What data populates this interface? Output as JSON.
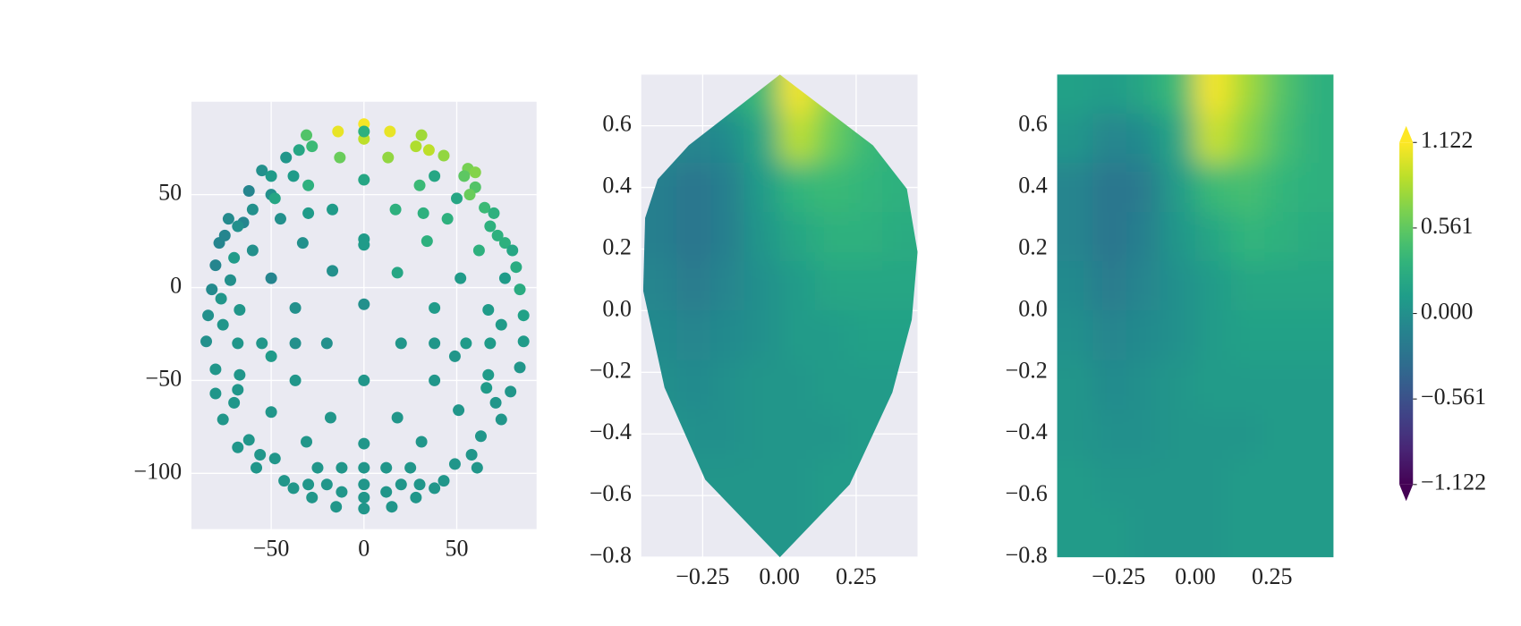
{
  "chart_data": [
    {
      "type": "scatter",
      "colormap": "viridis",
      "clim": [
        -1.122,
        1.122
      ],
      "grid": true,
      "xlim": [
        -93,
        93
      ],
      "ylim": [
        -130,
        100
      ],
      "xticks": [
        {
          "value": -50,
          "label": "−50"
        },
        0,
        50
      ],
      "yticks": [
        {
          "value": -100,
          "label": "−100"
        },
        {
          "value": -50,
          "label": "−50"
        },
        0,
        50
      ],
      "x": [
        0,
        -14,
        14,
        -31,
        31,
        0,
        0,
        -35,
        -28,
        35,
        43,
        -13,
        13,
        28,
        -42,
        56,
        60,
        -55,
        54,
        -50,
        38,
        -38,
        0,
        -30,
        30,
        60,
        -62,
        57,
        -50,
        -48,
        50,
        -60,
        65,
        -30,
        -17,
        17,
        32,
        70,
        -73,
        -45,
        45,
        -65,
        68,
        -68,
        0,
        0,
        -33,
        34,
        -78,
        76,
        -75,
        72,
        -60,
        62,
        80,
        -70,
        -80,
        82,
        -17,
        18,
        -50,
        52,
        -72,
        76,
        -82,
        84,
        -77,
        0,
        -37,
        38,
        -67,
        67,
        -84,
        86,
        -76,
        74,
        -85,
        86,
        -55,
        -37,
        -20,
        20,
        38,
        55,
        -68,
        68,
        -50,
        49,
        -80,
        84,
        -67,
        67,
        -37,
        0,
        38,
        -80,
        79,
        -68,
        66,
        -70,
        71,
        -50,
        -18,
        18,
        51,
        -76,
        74,
        -62,
        63,
        -68,
        0,
        -31,
        31,
        -56,
        58,
        -48,
        49,
        -58,
        61,
        -12,
        0,
        12,
        -25,
        25,
        -43,
        43,
        -30,
        30,
        -20,
        20,
        0,
        -12,
        12,
        -38,
        38,
        -28,
        28,
        0,
        -15,
        15,
        0
      ],
      "y": [
        88,
        84,
        84,
        82,
        82,
        80,
        84,
        74,
        76,
        74,
        71,
        70,
        70,
        76,
        70,
        64,
        62,
        63,
        60,
        60,
        60,
        60,
        58,
        55,
        55,
        54,
        52,
        50,
        50,
        48,
        48,
        42,
        43,
        40,
        42,
        42,
        40,
        40,
        37,
        37,
        37,
        35,
        33,
        33,
        26,
        23,
        24,
        25,
        24,
        24,
        28,
        28,
        20,
        20,
        20,
        16,
        12,
        11,
        9,
        8,
        5,
        5,
        4,
        5,
        -1,
        -1,
        -6,
        -9,
        -11,
        -11,
        -12,
        -12,
        -15,
        -15,
        -20,
        -20,
        -29,
        -29,
        -30,
        -30,
        -30,
        -30,
        -30,
        -30,
        -30,
        -30,
        -37,
        -37,
        -44,
        -43,
        -47,
        -47,
        -50,
        -50,
        -50,
        -57,
        -56,
        -55,
        -54,
        -62,
        -62,
        -67,
        -70,
        -70,
        -66,
        -71,
        -71,
        -82,
        -80,
        -86,
        -84,
        -83,
        -83,
        -90,
        -90,
        -92,
        -95,
        -97,
        -97,
        -97,
        -97,
        -97,
        -97,
        -97,
        -104,
        -104,
        -106,
        -106,
        -106,
        -106,
        -106,
        -110,
        -110,
        -108,
        -108,
        -113,
        -113,
        -113,
        -118,
        -118,
        -119
      ],
      "values": [
        1.1,
        1.05,
        1.05,
        0.5,
        0.8,
        0.9,
        0.3,
        0.2,
        0.4,
        0.9,
        0.75,
        0.6,
        0.75,
        0.85,
        0.05,
        0.65,
        0.7,
        0.0,
        0.55,
        0.1,
        0.2,
        0.1,
        0.2,
        0.3,
        0.4,
        0.5,
        -0.1,
        0.6,
        0.0,
        0.2,
        0.2,
        0.0,
        0.4,
        0.1,
        0.1,
        0.3,
        0.3,
        0.3,
        -0.05,
        0.0,
        0.3,
        -0.1,
        0.3,
        0.0,
        0.1,
        0.1,
        0.0,
        0.3,
        -0.1,
        0.3,
        -0.1,
        0.3,
        0.0,
        0.3,
        0.2,
        0.1,
        -0.1,
        0.25,
        0.0,
        0.2,
        -0.1,
        0.1,
        0.0,
        0.1,
        -0.05,
        0.25,
        0.05,
        0.0,
        0.0,
        0.1,
        0.05,
        0.1,
        0.0,
        0.15,
        0.05,
        0.1,
        0.0,
        0.1,
        0.05,
        0.0,
        0.0,
        0.05,
        0.05,
        0.1,
        0.05,
        0.1,
        0.1,
        0.05,
        0.05,
        0.05,
        0.05,
        0.1,
        0.05,
        0.05,
        0.05,
        0.05,
        0.05,
        0.05,
        0.1,
        0.05,
        0.05,
        0.05,
        0.05,
        0.05,
        0.05,
        0.05,
        0.05,
        0.05,
        0.05,
        0.05,
        0.05,
        0.05,
        0.05,
        0.05,
        0.05,
        0.05,
        0.05,
        0.05,
        0.05,
        0.05,
        0.05,
        0.05,
        0.05,
        0.05,
        0.05,
        0.05,
        0.05,
        0.05,
        0.05,
        0.05,
        0.05,
        0.05,
        0.05,
        0.05,
        0.05,
        0.05,
        0.05,
        0.05,
        0.05,
        0.05,
        0.05
      ]
    },
    {
      "type": "heatmap",
      "colormap": "viridis",
      "clim": [
        -1.122,
        1.122
      ],
      "grid": true,
      "xlim": [
        -0.45,
        0.45
      ],
      "ylim": [
        -0.8,
        0.766
      ],
      "xticks": [
        {
          "value": -0.25,
          "label": "−0.25"
        },
        {
          "value": 0,
          "label": "0.00"
        },
        0.25
      ],
      "yticks": [
        {
          "value": -0.8,
          "label": "−0.8"
        },
        {
          "value": -0.6,
          "label": "−0.6"
        },
        {
          "value": -0.4,
          "label": "−0.4"
        },
        {
          "value": -0.2,
          "label": "−0.2"
        },
        {
          "value": 0,
          "label": "0.0"
        },
        0.2,
        0.4,
        0.6
      ],
      "x": [
        -0.39,
        -0.28,
        -0.17,
        -0.06,
        0.06,
        0.17,
        0.28,
        0.39
      ],
      "y": [
        0.72,
        0.56,
        0.4,
        0.24,
        0.08,
        -0.08,
        -0.24,
        -0.4,
        -0.56,
        -0.72
      ],
      "z": [
        [
          0.1,
          0.1,
          0.2,
          0.4,
          1.1,
          0.7,
          0.4,
          0.3
        ],
        [
          0,
          -0.1,
          -0.05,
          0.2,
          0.9,
          0.6,
          0.4,
          0.3
        ],
        [
          -0.15,
          -0.25,
          -0.15,
          0.1,
          0.35,
          0.4,
          0.35,
          0.3
        ],
        [
          -0.15,
          -0.25,
          -0.15,
          0.05,
          0.2,
          0.3,
          0.3,
          0.25
        ],
        [
          -0.1,
          -0.2,
          -0.1,
          0,
          0.1,
          0.2,
          0.2,
          0.2
        ],
        [
          -0.05,
          -0.1,
          -0.05,
          0,
          0.1,
          0.1,
          0.15,
          0.15
        ],
        [
          0,
          -0.05,
          0,
          0.05,
          0.05,
          0.1,
          0.1,
          0.1
        ],
        [
          0.05,
          0,
          0,
          0.05,
          0.05,
          0.05,
          0.1,
          0.1
        ],
        [
          0.1,
          0.05,
          0.05,
          0.05,
          0.05,
          0.1,
          0.1,
          0.1
        ],
        [
          0.1,
          0.1,
          0.05,
          0.05,
          0.05,
          0.1,
          0.1,
          0.1
        ]
      ]
    },
    {
      "type": "heatmap",
      "colormap": "viridis",
      "clim": [
        -1.122,
        1.122
      ],
      "grid": false,
      "xlim": [
        -0.45,
        0.45
      ],
      "ylim": [
        -0.8,
        0.766
      ],
      "xticks": [
        {
          "value": -0.25,
          "label": "−0.25"
        },
        {
          "value": 0,
          "label": "0.00"
        },
        0.25
      ],
      "yticks": [
        {
          "value": -0.8,
          "label": "−0.8"
        },
        {
          "value": -0.6,
          "label": "−0.6"
        },
        {
          "value": -0.4,
          "label": "−0.4"
        },
        {
          "value": -0.2,
          "label": "−0.2"
        },
        {
          "value": 0,
          "label": "0.0"
        },
        0.2,
        0.4,
        0.6
      ],
      "x": [
        -0.39,
        -0.28,
        -0.17,
        -0.06,
        0.06,
        0.17,
        0.28,
        0.39
      ],
      "y": [
        0.72,
        0.56,
        0.4,
        0.24,
        0.08,
        -0.08,
        -0.24,
        -0.4,
        -0.56,
        -0.72
      ],
      "z": [
        [
          0.15,
          0.1,
          0.2,
          0.4,
          1.1,
          0.8,
          0.5,
          0.3
        ],
        [
          0.05,
          -0.1,
          -0.05,
          0.2,
          0.95,
          0.7,
          0.45,
          0.3
        ],
        [
          -0.1,
          -0.25,
          -0.2,
          0.1,
          0.4,
          0.45,
          0.35,
          0.3
        ],
        [
          -0.1,
          -0.25,
          -0.15,
          0.05,
          0.2,
          0.35,
          0.3,
          0.25
        ],
        [
          -0.05,
          -0.2,
          -0.1,
          0,
          0.1,
          0.2,
          0.2,
          0.2
        ],
        [
          0,
          -0.1,
          -0.05,
          0,
          0.1,
          0.15,
          0.15,
          0.15
        ],
        [
          0.05,
          -0.05,
          0,
          0.05,
          0.1,
          0.1,
          0.1,
          0.1
        ],
        [
          0.05,
          0,
          0,
          0.05,
          0.05,
          0.05,
          0.1,
          0.1
        ],
        [
          0.1,
          0.05,
          0.05,
          0.05,
          0.05,
          0.1,
          0.1,
          0.1
        ],
        [
          0.1,
          0.1,
          0.05,
          0.05,
          0.05,
          0.1,
          0.1,
          0.1
        ]
      ]
    },
    {
      "type": "colorbar",
      "colormap": "viridis",
      "clim": [
        -1.122,
        1.122
      ],
      "extend": "both",
      "ticks": [
        {
          "value": -1.122,
          "label": "−1.122"
        },
        {
          "value": -0.561,
          "label": "−0.561"
        },
        {
          "value": 0,
          "label": "0.000"
        },
        0.561,
        1.122
      ]
    }
  ]
}
